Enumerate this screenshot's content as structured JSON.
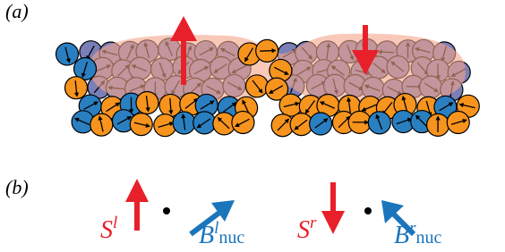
{
  "panels": [
    {
      "label": "(a)"
    },
    {
      "label": "(b)",
      "symbols": [
        {
          "base": "S",
          "sup": "l"
        },
        {
          "base": "B",
          "sup": "l",
          "sub": "nuc"
        },
        {
          "base": "S",
          "sup": "r"
        },
        {
          "base": "B",
          "sup": "r",
          "sub": "nuc"
        }
      ]
    }
  ]
}
